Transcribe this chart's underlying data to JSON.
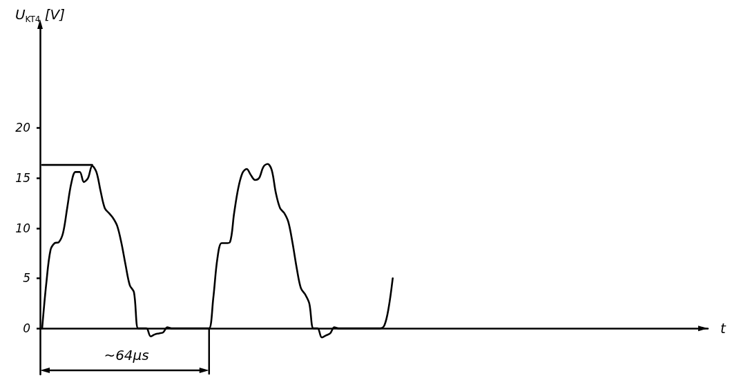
{
  "chart_data": {
    "type": "line",
    "xlabel": "t",
    "ylabel": "U$_{KT4}$ [V]",
    "categories": [
      null,
      null,
      null,
      null,
      null,
      null,
      null,
      null,
      null,
      null,
      null,
      null,
      null,
      null,
      null,
      null,
      null,
      null,
      null,
      null,
      null,
      null,
      null,
      null,
      null,
      null,
      null,
      null,
      null,
      null,
      null,
      null,
      null,
      null,
      null,
      null,
      null,
      null,
      null,
      null,
      null,
      null,
      null,
      null,
      null,
      null,
      null,
      null,
      null,
      null,
      null,
      null,
      null,
      null,
      null,
      null,
      null,
      null,
      null,
      null,
      null,
      null,
      null,
      null,
      null,
      null,
      null,
      null,
      null,
      null,
      null,
      null,
      null,
      null,
      null,
      null,
      null,
      null,
      null,
      null,
      null,
      null,
      null,
      null,
      null,
      null,
      null,
      null,
      null,
      null,
      null,
      null,
      null,
      null,
      null,
      null,
      null,
      null,
      null,
      null,
      null,
      null,
      null,
      null,
      null,
      null,
      null,
      null,
      null,
      null,
      null,
      null,
      null,
      null,
      null,
      null,
      null,
      null,
      null,
      null,
      null,
      null,
      null,
      null,
      null,
      null,
      null,
      null,
      null,
      null,
      null,
      null,
      null,
      null,
      null,
      null,
      null,
      null,
      null,
      null,
      null,
      null,
      null,
      null,
      null,
      null,
      null,
      null,
      null,
      null,
      null,
      null,
      null,
      null,
      null,
      null,
      null,
      null,
      null,
      null
    ],
    "series": [
      {
        "color": "#000000",
        "values": [
          0,
          4.5,
          7.8,
          8.5,
          8.6,
          9.5,
          12,
          14.5,
          15.6,
          15.6,
          14.6,
          15,
          16.2,
          15.6,
          13.7,
          12,
          11.5,
          11,
          10.2,
          8.5,
          6.3,
          4.3,
          3.6,
          0,
          0,
          0,
          -0.8,
          -0.6,
          -0.5,
          -0.4,
          0.1,
          0,
          0,
          0,
          0,
          0,
          0,
          0,
          0,
          0,
          0,
          3,
          7,
          8.5,
          8.5,
          8.6,
          11.5,
          14,
          15.5,
          15.9,
          15.3,
          14.8,
          15,
          16.1,
          16.4,
          15.8,
          13.5,
          12,
          11.5,
          10.6,
          8.5,
          6,
          4,
          3.4,
          2.5,
          0,
          0,
          -0.9,
          -0.7,
          -0.5,
          0.1,
          0,
          0,
          0,
          0,
          0,
          0,
          0,
          0,
          0,
          0,
          0,
          0.3,
          2,
          5,
          null,
          null,
          null,
          null,
          null,
          null,
          null,
          null,
          null,
          null,
          null,
          null,
          null,
          null,
          null,
          null,
          null,
          null,
          null,
          null,
          null,
          null,
          null,
          null,
          null,
          null,
          null,
          null,
          null,
          null,
          null,
          null,
          null,
          null,
          null,
          null,
          null,
          null,
          null,
          null,
          null,
          null,
          null,
          null,
          null,
          null,
          null,
          null,
          null,
          null,
          null,
          null,
          null,
          null,
          null,
          null,
          null,
          null,
          null,
          null,
          null,
          null,
          null,
          null,
          null,
          null,
          null,
          null,
          null,
          null,
          null,
          null,
          null,
          null,
          null
        ]
      },
      {
        "type": "line",
        "color": "#000000",
        "values": [
          16.3,
          16.3,
          16.3,
          16.3,
          16.3,
          16.3,
          16.3,
          16.3,
          16.3,
          16.3,
          16.3,
          16.3,
          16.3,
          null,
          null,
          null,
          null,
          null,
          null,
          null,
          null,
          null,
          null,
          null,
          null,
          null,
          null,
          null,
          null,
          null,
          null,
          null,
          null,
          null,
          null,
          null,
          null,
          null,
          null,
          null,
          null,
          null,
          null,
          null,
          null,
          null,
          null,
          null,
          null,
          null,
          null,
          null,
          null,
          null,
          null,
          null,
          null,
          null,
          null,
          null,
          null,
          null,
          null,
          null,
          null,
          null,
          null,
          null,
          null,
          null,
          null,
          null,
          null,
          null,
          null,
          null,
          null,
          null,
          null,
          null,
          null,
          null,
          null,
          null,
          null,
          null,
          null,
          null,
          null,
          null,
          null,
          null,
          null,
          null,
          null,
          null,
          null,
          null,
          null,
          null,
          null,
          null,
          null,
          null,
          null,
          null,
          null,
          null,
          null,
          null,
          null,
          null,
          null,
          null,
          null,
          null,
          null,
          null,
          null,
          null,
          null,
          null,
          null,
          null,
          null,
          null,
          null,
          null,
          null,
          null,
          null,
          null,
          null,
          null,
          null,
          null,
          null,
          null,
          null,
          null,
          null,
          null,
          null,
          null,
          null,
          null,
          null,
          null,
          null,
          null,
          null,
          null,
          null,
          null,
          null,
          null,
          null,
          null,
          null,
          null
        ]
      }
    ],
    "ylim": [
      -4.6,
      30
    ],
    "yticks": [
      0,
      5,
      10,
      15,
      20
    ],
    "annotations": [
      "~64µs"
    ],
    "marker": "none",
    "line_style": "solid"
  }
}
